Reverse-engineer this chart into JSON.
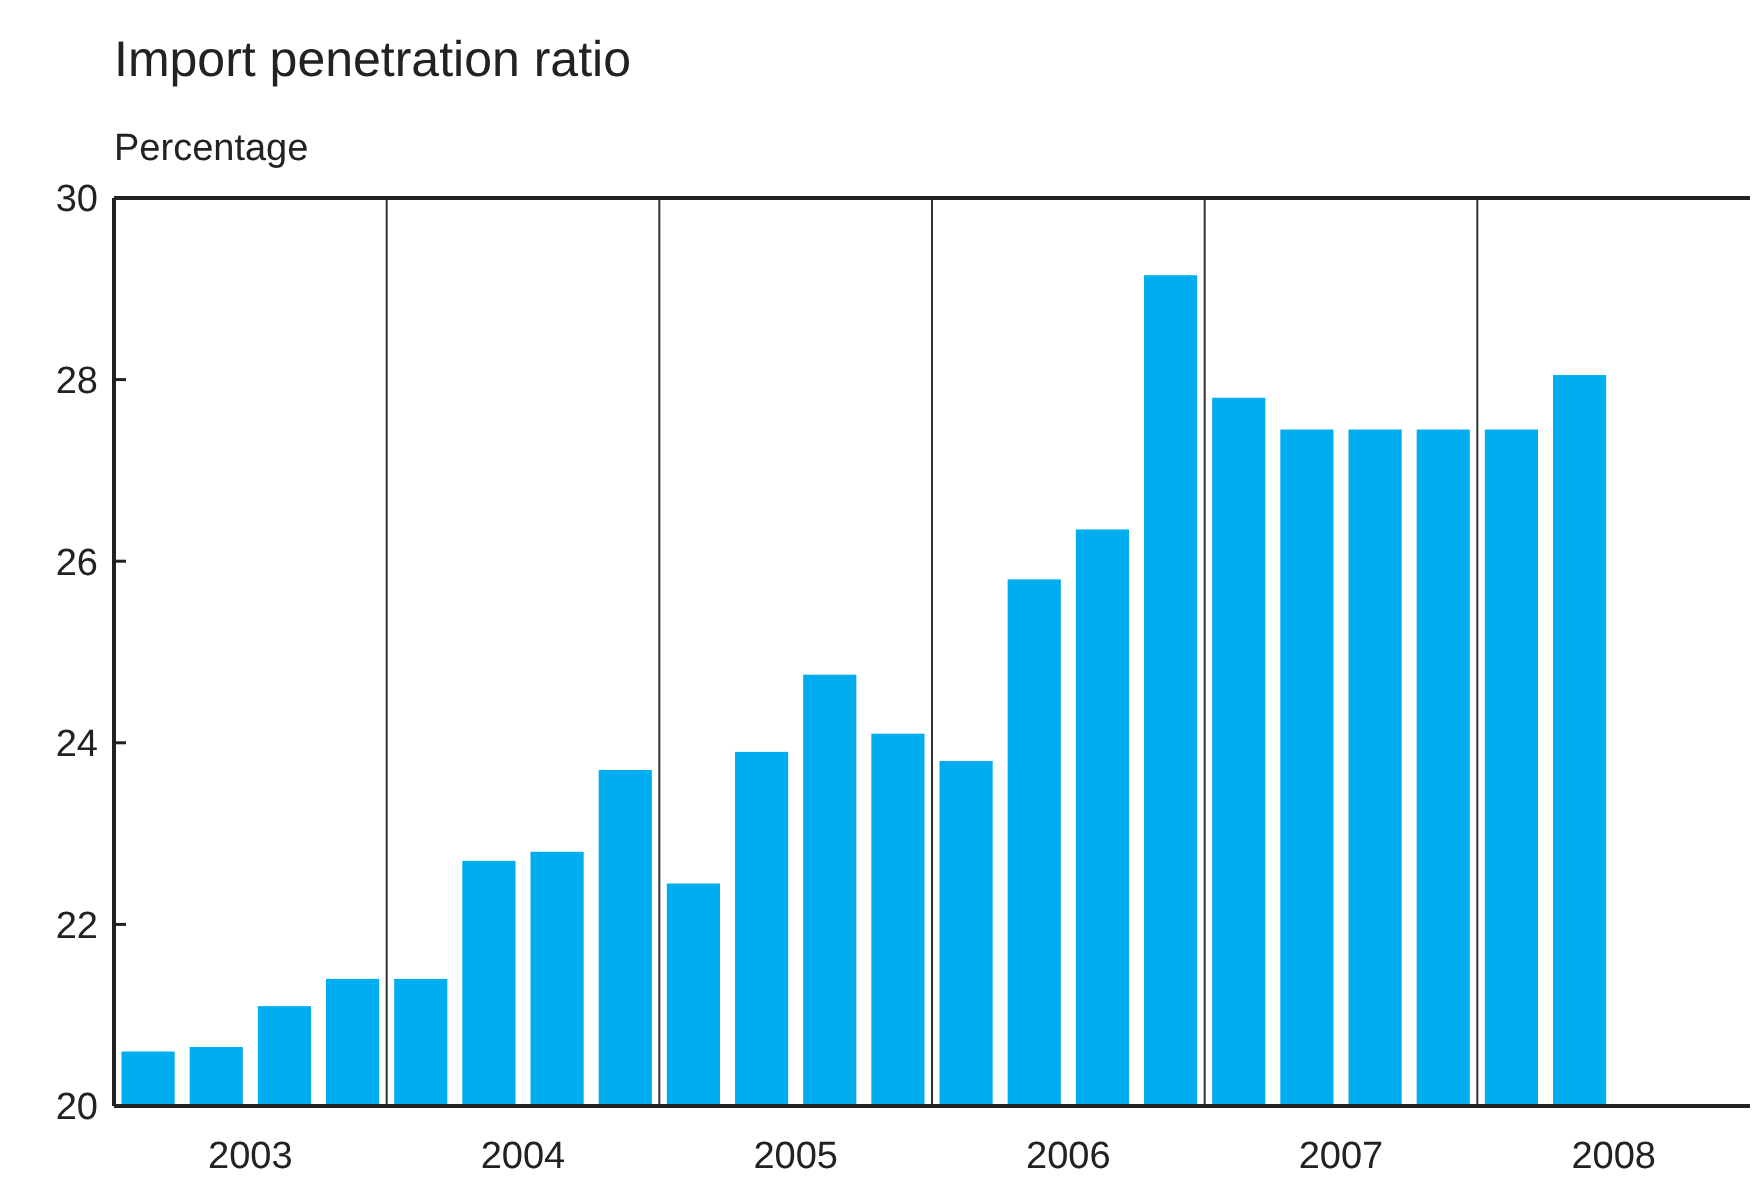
{
  "chart_data": {
    "type": "bar",
    "title": "Import penetration ratio",
    "ylabel": "Percentage",
    "categories": [
      "2003",
      "2004",
      "2005",
      "2006",
      "2007",
      "2008"
    ],
    "series": [
      {
        "color": "#00aeef",
        "values": [
          20.6,
          21.4,
          22.45,
          23.8,
          27.8,
          27.45
        ]
      },
      {
        "color": "#00aeef",
        "values": [
          20.65,
          22.7,
          23.9,
          25.8,
          27.45,
          28.05
        ]
      },
      {
        "color": "#00aeef",
        "values": [
          21.1,
          22.8,
          24.75,
          26.35,
          27.45,
          null
        ]
      },
      {
        "color": "#00aeef",
        "values": [
          21.4,
          23.7,
          24.1,
          29.15,
          27.45,
          null
        ]
      }
    ],
    "ylim": [
      20,
      30
    ],
    "yticks": [
      20,
      22,
      24,
      26,
      28,
      30
    ],
    "grid": "x"
  }
}
